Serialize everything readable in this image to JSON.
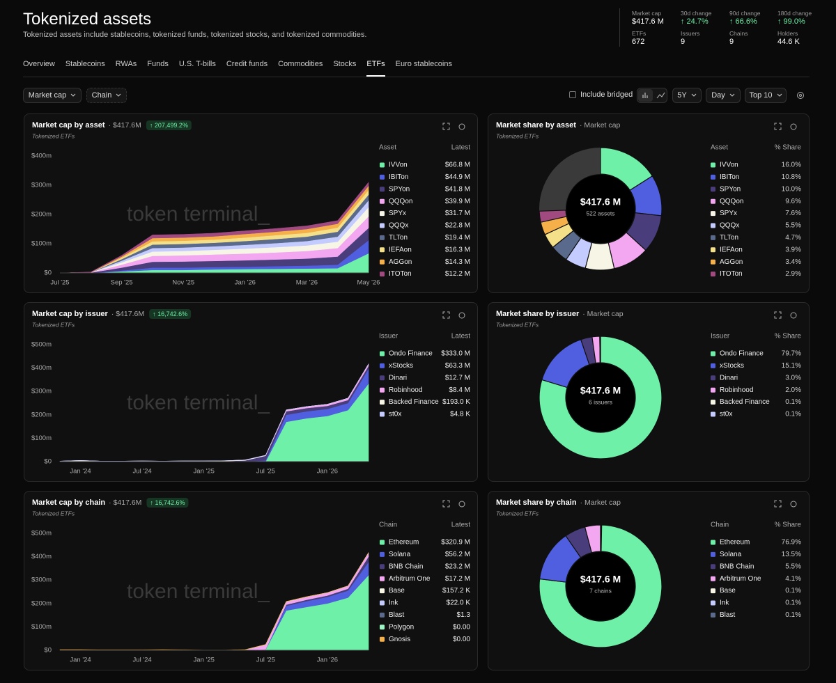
{
  "header": {
    "title": "Tokenized assets",
    "subtitle": "Tokenized assets include stablecoins, tokenized funds, tokenized stocks, and tokenized commodities."
  },
  "stats": [
    {
      "label": "Market cap",
      "value": "$417.6 M"
    },
    {
      "label": "30d change",
      "value": "↑ 24.7%"
    },
    {
      "label": "90d change",
      "value": "↑ 66.6%"
    },
    {
      "label": "180d change",
      "value": "↑ 99.0%"
    },
    {
      "label": "ETFs",
      "value": "672"
    },
    {
      "label": "Issuers",
      "value": "9"
    },
    {
      "label": "Chains",
      "value": "9"
    },
    {
      "label": "Holders",
      "value": "44.6 K"
    }
  ],
  "tabs": {
    "items": [
      "Overview",
      "Stablecoins",
      "RWAs",
      "Funds",
      "U.S. T-bills",
      "Credit funds",
      "Commodities",
      "Stocks",
      "ETFs",
      "Euro stablecoins"
    ],
    "active": 8
  },
  "controls": {
    "metric": "Market cap",
    "group": "Chain",
    "bridged": "Include bridged",
    "range": "5Y",
    "interval": "Day",
    "top": "Top 10"
  },
  "watermark": "token terminal_",
  "chart_data": [
    {
      "type": "area",
      "title": "Market cap by asset",
      "title_value": "· $417.6M",
      "change": "↑ 207,499.2%",
      "subtitle": "Tokenized ETFs",
      "legend_header": [
        "Asset",
        "Latest"
      ],
      "categories": [
        "Jul '25",
        null,
        "Sep '25",
        null,
        "Nov '25",
        null,
        "Jan '26",
        null,
        "Mar '26",
        null,
        "May '26"
      ],
      "ylim": [
        0,
        400
      ],
      "yticks": [
        {
          "value": 0,
          "label": "$0"
        },
        {
          "value": 100,
          "label": "$100m"
        },
        {
          "value": 200,
          "label": "$200m"
        },
        {
          "value": 300,
          "label": "$300m"
        },
        {
          "value": 400,
          "label": "$400m"
        }
      ],
      "series": [
        {
          "name": "IVVon",
          "color": "#6ef0a8",
          "latest": "$66.8 M",
          "values": [
            0,
            0,
            5,
            10,
            10,
            12,
            13,
            14,
            15,
            16,
            66.8
          ]
        },
        {
          "name": "IBITon",
          "color": "#4f5fe0",
          "latest": "$44.9 M",
          "values": [
            0,
            0,
            3,
            8,
            8,
            8,
            8,
            9,
            10,
            12,
            44.9
          ]
        },
        {
          "name": "SPYon",
          "color": "#4a3d7c",
          "latest": "$41.8 M",
          "values": [
            0,
            1,
            10,
            20,
            21,
            21,
            22,
            23,
            24,
            28,
            41.8
          ]
        },
        {
          "name": "QQQon",
          "color": "#f2a7f0",
          "latest": "$39.9 M",
          "values": [
            0,
            1,
            10,
            20,
            21,
            22,
            23,
            24,
            26,
            29,
            39.9
          ]
        },
        {
          "name": "SPYx",
          "color": "#f7f5e6",
          "latest": "$31.7 M",
          "values": [
            0,
            0,
            8,
            15,
            15,
            16,
            17,
            18,
            19,
            22,
            31.7
          ]
        },
        {
          "name": "QQQx",
          "color": "#c4cbff",
          "latest": "$22.8 M",
          "values": [
            0,
            0,
            6,
            12,
            12,
            12,
            13,
            14,
            15,
            17,
            22.8
          ]
        },
        {
          "name": "TLTon",
          "color": "#5a6a8c",
          "latest": "$19.4 M",
          "values": [
            0,
            0,
            5,
            12,
            12,
            12,
            13,
            14,
            15,
            17,
            19.4
          ]
        },
        {
          "name": "IEFAon",
          "color": "#f5e08a",
          "latest": "$16.3 M",
          "values": [
            0,
            0,
            5,
            11,
            11,
            11,
            12,
            13,
            13,
            14,
            16.3
          ]
        },
        {
          "name": "AGGon",
          "color": "#f5b04a",
          "latest": "$14.3 M",
          "values": [
            0,
            0,
            4,
            11,
            11,
            11,
            12,
            12,
            13,
            13,
            14.3
          ]
        },
        {
          "name": "ITOTon",
          "color": "#a04a80",
          "latest": "$12.2 M",
          "values": [
            0,
            1,
            4,
            11,
            11,
            11,
            11,
            11,
            11,
            11,
            12.2
          ]
        }
      ]
    },
    {
      "type": "donut",
      "title": "Market share by asset",
      "title_value": "· Market cap",
      "subtitle": "Tokenized ETFs",
      "legend_header": [
        "Asset",
        "% Share"
      ],
      "center_value": "$417.6 M",
      "center_label": "522 assets",
      "categories": [
        "IVVon",
        "IBITon",
        "SPYon",
        "QQQon",
        "SPYx",
        "QQQx",
        "TLTon",
        "IEFAon",
        "AGGon",
        "ITOTon"
      ],
      "values": [
        16,
        10.8,
        10,
        9.6,
        7.6,
        5.5,
        4.7,
        3.9,
        3.4,
        2.9
      ],
      "value_labels": [
        "16.0%",
        "10.8%",
        "10.0%",
        "9.6%",
        "7.6%",
        "5.5%",
        "4.7%",
        "3.9%",
        "3.4%",
        "2.9%"
      ],
      "colors": [
        "#6ef0a8",
        "#4f5fe0",
        "#4a3d7c",
        "#f2a7f0",
        "#f7f5e6",
        "#c4cbff",
        "#5a6a8c",
        "#f5e08a",
        "#f5b04a",
        "#a04a80"
      ]
    },
    {
      "type": "area",
      "title": "Market cap by issuer",
      "title_value": "· $417.6M",
      "change": "↑ 16,742.6%",
      "subtitle": "Tokenized ETFs",
      "legend_header": [
        "Issuer",
        "Latest"
      ],
      "categories": [
        null,
        "Jan '24",
        null,
        null,
        "Jul '24",
        null,
        null,
        "Jan '25",
        null,
        null,
        "Jul '25",
        null,
        null,
        "Jan '26",
        null,
        null
      ],
      "ylim": [
        0,
        500
      ],
      "yticks": [
        {
          "value": 0,
          "label": "$0"
        },
        {
          "value": 100,
          "label": "$100m"
        },
        {
          "value": 200,
          "label": "$200m"
        },
        {
          "value": 300,
          "label": "$300m"
        },
        {
          "value": 400,
          "label": "$400m"
        },
        {
          "value": 500,
          "label": "$500m"
        }
      ],
      "series": [
        {
          "name": "Ondo Finance",
          "color": "#6ef0a8",
          "latest": "$333.0 M",
          "values": [
            0,
            0,
            0,
            0,
            0,
            0,
            0,
            0,
            0,
            0,
            0,
            170,
            185,
            195,
            220,
            333
          ]
        },
        {
          "name": "xStocks",
          "color": "#4f5fe0",
          "latest": "$63.3 M",
          "values": [
            0,
            0,
            0,
            0,
            0,
            0,
            0,
            0,
            0,
            0,
            5,
            30,
            30,
            30,
            30,
            63.3
          ]
        },
        {
          "name": "Dinari",
          "color": "#4a3d7c",
          "latest": "$12.7 M",
          "values": [
            0,
            2,
            1,
            1,
            2,
            1,
            1,
            2,
            2,
            5,
            20,
            15,
            14,
            13,
            13,
            12.7
          ]
        },
        {
          "name": "Robinhood",
          "color": "#f2a7f0",
          "latest": "$8.4 M",
          "values": [
            0,
            0,
            0,
            0,
            0,
            0,
            0,
            0,
            0,
            0,
            0,
            5,
            6,
            7,
            8,
            8.4
          ]
        },
        {
          "name": "Backed Finance",
          "color": "#f7f5e6",
          "latest": "$193.0 K",
          "values": [
            2,
            3,
            1,
            1,
            1,
            1,
            2,
            1,
            2,
            2,
            2,
            1,
            0.5,
            0.3,
            0.2,
            0.193
          ]
        },
        {
          "name": "st0x",
          "color": "#c4cbff",
          "latest": "$4.8 K",
          "values": [
            0,
            0,
            0,
            0,
            0,
            0,
            0,
            0,
            0,
            0,
            0,
            0,
            0,
            0,
            0,
            0.0048
          ]
        }
      ]
    },
    {
      "type": "donut",
      "title": "Market share by issuer",
      "title_value": "· Market cap",
      "subtitle": "Tokenized ETFs",
      "legend_header": [
        "Issuer",
        "% Share"
      ],
      "center_value": "$417.6 M",
      "center_label": "6 issuers",
      "categories": [
        "Ondo Finance",
        "xStocks",
        "Dinari",
        "Robinhood",
        "Backed Finance",
        "st0x"
      ],
      "values": [
        79.7,
        15.1,
        3,
        2,
        0.1,
        0.1
      ],
      "value_labels": [
        "79.7%",
        "15.1%",
        "3.0%",
        "2.0%",
        "0.1%",
        "0.1%"
      ],
      "colors": [
        "#6ef0a8",
        "#4f5fe0",
        "#4a3d7c",
        "#f2a7f0",
        "#f7f5e6",
        "#c4cbff"
      ]
    },
    {
      "type": "area",
      "title": "Market cap by chain",
      "title_value": "· $417.6M",
      "change": "↑ 16,742.6%",
      "subtitle": "Tokenized ETFs",
      "legend_header": [
        "Chain",
        "Latest"
      ],
      "categories": [
        null,
        "Jan '24",
        null,
        null,
        "Jul '24",
        null,
        null,
        "Jan '25",
        null,
        null,
        "Jul '25",
        null,
        null,
        "Jan '26",
        null,
        null
      ],
      "ylim": [
        0,
        500
      ],
      "yticks": [
        {
          "value": 0,
          "label": "$0"
        },
        {
          "value": 100,
          "label": "$100m"
        },
        {
          "value": 200,
          "label": "$200m"
        },
        {
          "value": 300,
          "label": "$300m"
        },
        {
          "value": 400,
          "label": "$400m"
        },
        {
          "value": 500,
          "label": "$500m"
        }
      ],
      "series": [
        {
          "name": "Ethereum",
          "color": "#6ef0a8",
          "latest": "$320.9 M",
          "values": [
            0,
            0,
            0,
            0,
            0,
            0,
            0,
            0,
            0,
            0,
            3,
            170,
            185,
            200,
            225,
            320.9
          ]
        },
        {
          "name": "Solana",
          "color": "#4f5fe0",
          "latest": "$56.2 M",
          "values": [
            0,
            0,
            0,
            0,
            0,
            0,
            0,
            0,
            0,
            0,
            0,
            20,
            25,
            28,
            30,
            56.2
          ]
        },
        {
          "name": "BNB Chain",
          "color": "#4a3d7c",
          "latest": "$23.2 M",
          "values": [
            0,
            0,
            0,
            0,
            0,
            0,
            0,
            0,
            0,
            0,
            0,
            5,
            6,
            6,
            8,
            23.2
          ]
        },
        {
          "name": "Arbitrum One",
          "color": "#f2a7f0",
          "latest": "$17.2 M",
          "values": [
            0,
            0,
            0,
            0,
            0,
            0,
            0,
            0,
            0,
            2,
            20,
            12,
            12,
            12,
            12,
            17.2
          ]
        },
        {
          "name": "Base",
          "color": "#f7f5e6",
          "latest": "$157.2 K",
          "values": [
            0,
            0,
            0,
            0,
            0,
            0,
            0,
            0,
            0,
            0,
            1,
            1,
            0.5,
            0.3,
            0.2,
            0.1572
          ]
        },
        {
          "name": "Ink",
          "color": "#c4cbff",
          "latest": "$22.0 K",
          "values": [
            0,
            0,
            0,
            0,
            0,
            0,
            0,
            0,
            0,
            0,
            0,
            0,
            0,
            0,
            0,
            0.022
          ]
        },
        {
          "name": "Blast",
          "color": "#5a6a8c",
          "latest": "$1.3",
          "values": [
            0,
            0,
            0,
            0,
            0,
            0,
            0,
            0,
            0,
            0,
            0,
            0,
            0,
            0,
            0,
            1.3e-06
          ]
        },
        {
          "name": "Polygon",
          "color": "#9ef5c4",
          "latest": "$0.00",
          "values": [
            0,
            0,
            0,
            0,
            0,
            0,
            0,
            0,
            0,
            0,
            0,
            0,
            0,
            0,
            0,
            0
          ]
        },
        {
          "name": "Gnosis",
          "color": "#f5b04a",
          "latest": "$0.00",
          "values": [
            3,
            3,
            2,
            2,
            2,
            3,
            2,
            1,
            1,
            1,
            1,
            1,
            1,
            0,
            0,
            0
          ]
        }
      ]
    },
    {
      "type": "donut",
      "title": "Market share by chain",
      "title_value": "· Market cap",
      "subtitle": "Tokenized ETFs",
      "legend_header": [
        "Chain",
        "% Share"
      ],
      "center_value": "$417.6 M",
      "center_label": "7 chains",
      "categories": [
        "Ethereum",
        "Solana",
        "BNB Chain",
        "Arbitrum One",
        "Base",
        "Ink",
        "Blast"
      ],
      "values": [
        76.9,
        13.5,
        5.5,
        4.1,
        0.1,
        0.1,
        0.1
      ],
      "value_labels": [
        "76.9%",
        "13.5%",
        "5.5%",
        "4.1%",
        "0.1%",
        "0.1%",
        "0.1%"
      ],
      "colors": [
        "#6ef0a8",
        "#4f5fe0",
        "#4a3d7c",
        "#f2a7f0",
        "#f7f5e6",
        "#c4cbff",
        "#5a6a8c"
      ]
    }
  ]
}
